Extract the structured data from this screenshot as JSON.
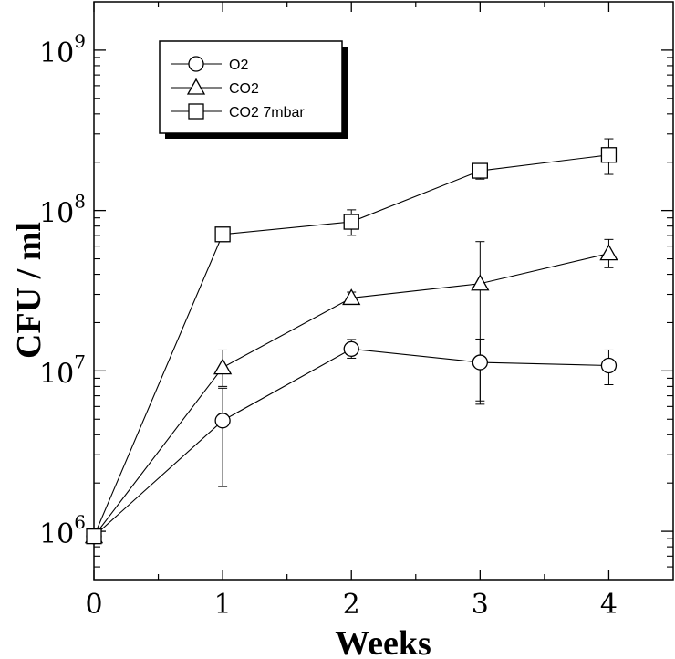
{
  "chart_data": {
    "type": "line",
    "title": "",
    "xlabel": "Weeks",
    "ylabel": "CFU / ml",
    "x": [
      0,
      1,
      2,
      3,
      4
    ],
    "xlim": [
      0,
      4.5
    ],
    "ylim": [
      500000,
      2000000000
    ],
    "y_scale": "log",
    "x_ticks": [
      0,
      1,
      2,
      3,
      4
    ],
    "y_ticks": [
      {
        "value": 1000000,
        "base": "10",
        "exp": "6"
      },
      {
        "value": 10000000,
        "base": "10",
        "exp": "7"
      },
      {
        "value": 100000000,
        "base": "10",
        "exp": "8"
      },
      {
        "value": 1000000000,
        "base": "10",
        "exp": "9"
      }
    ],
    "grid": false,
    "legend_position": "top-left",
    "series": [
      {
        "name": "O2",
        "marker": "circle",
        "values": [
          930000,
          4900000,
          13700000,
          11300000,
          10800000
        ],
        "err_low": [
          930000,
          1900000,
          12000000,
          6500000,
          8200000
        ],
        "err_high": [
          930000,
          7800000,
          15700000,
          15800000,
          13500000
        ]
      },
      {
        "name": "CO2",
        "marker": "triangle",
        "values": [
          930000,
          10500000,
          28500000,
          35000000,
          54000000
        ],
        "err_low": [
          930000,
          8000000,
          26500000,
          6200000,
          44000000
        ],
        "err_high": [
          930000,
          13500000,
          31000000,
          64000000,
          66000000
        ]
      },
      {
        "name": "CO2 7mbar",
        "marker": "square",
        "values": [
          930000,
          71000000,
          85000000,
          177000000,
          222000000
        ],
        "err_low": [
          930000,
          64000000,
          70000000,
          157000000,
          168000000
        ],
        "err_high": [
          930000,
          75000000,
          101000000,
          195000000,
          280000000
        ]
      }
    ]
  }
}
